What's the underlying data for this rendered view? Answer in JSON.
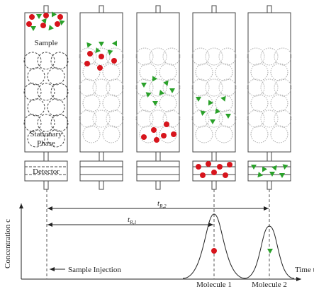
{
  "labels": {
    "sample": "Sample",
    "stationary_phase": [
      "Stationary",
      "Phase"
    ],
    "detector": "Detector",
    "retention_time_2": {
      "symbol": "t",
      "subscript": "R,2"
    },
    "retention_time_1": {
      "symbol": "t",
      "subscript": "R,1"
    },
    "y_axis": "Concentration c",
    "x_axis": "Time t",
    "sample_injection": "Sample Injection",
    "molecule_1": "Molecule 1",
    "molecule_2": "Molecule 2"
  }
}
